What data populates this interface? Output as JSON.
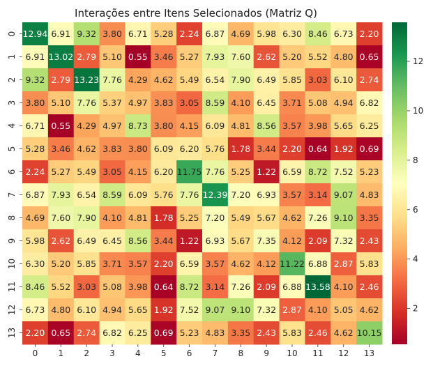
{
  "chart_data": {
    "type": "heatmap",
    "title": "Interações entre Itens Selecionados (Matriz Q)",
    "xlabel": "",
    "ylabel": "",
    "x_categories": [
      "0",
      "1",
      "2",
      "3",
      "4",
      "5",
      "6",
      "7",
      "8",
      "9",
      "10",
      "11",
      "12",
      "13"
    ],
    "y_categories": [
      "0",
      "1",
      "2",
      "3",
      "4",
      "5",
      "6",
      "7",
      "8",
      "9",
      "10",
      "11",
      "12",
      "13"
    ],
    "values": [
      [
        12.94,
        6.91,
        9.32,
        3.8,
        6.71,
        5.28,
        2.24,
        6.87,
        4.69,
        5.98,
        6.3,
        8.46,
        6.73,
        2.2
      ],
      [
        6.91,
        13.02,
        2.79,
        5.1,
        0.55,
        3.46,
        5.27,
        7.93,
        7.6,
        2.62,
        5.2,
        5.52,
        4.8,
        0.65
      ],
      [
        9.32,
        2.79,
        13.23,
        7.76,
        4.29,
        4.62,
        5.49,
        6.54,
        7.9,
        6.49,
        5.85,
        3.03,
        6.1,
        2.74
      ],
      [
        3.8,
        5.1,
        7.76,
        5.37,
        4.97,
        3.83,
        3.05,
        8.59,
        4.1,
        6.45,
        3.71,
        5.08,
        4.94,
        6.82
      ],
      [
        6.71,
        0.55,
        4.29,
        4.97,
        8.73,
        3.8,
        4.15,
        6.09,
        4.81,
        8.56,
        3.57,
        3.98,
        5.65,
        6.25
      ],
      [
        5.28,
        3.46,
        4.62,
        3.83,
        3.8,
        6.09,
        6.2,
        5.76,
        1.78,
        3.44,
        2.2,
        0.64,
        1.92,
        0.69
      ],
      [
        2.24,
        5.27,
        5.49,
        3.05,
        4.15,
        6.2,
        11.75,
        7.76,
        5.25,
        1.22,
        6.59,
        8.72,
        7.52,
        5.23
      ],
      [
        6.87,
        7.93,
        6.54,
        8.59,
        6.09,
        5.76,
        7.76,
        12.39,
        7.2,
        6.93,
        3.57,
        3.14,
        9.07,
        4.83
      ],
      [
        4.69,
        7.6,
        7.9,
        4.1,
        4.81,
        1.78,
        5.25,
        7.2,
        5.49,
        5.67,
        4.62,
        7.26,
        9.1,
        3.35
      ],
      [
        5.98,
        2.62,
        6.49,
        6.45,
        8.56,
        3.44,
        1.22,
        6.93,
        5.67,
        7.35,
        4.12,
        2.09,
        7.32,
        2.43
      ],
      [
        6.3,
        5.2,
        5.85,
        3.71,
        3.57,
        2.2,
        6.59,
        3.57,
        4.62,
        4.12,
        11.22,
        6.88,
        2.87,
        5.83
      ],
      [
        8.46,
        5.52,
        3.03,
        5.08,
        3.98,
        0.64,
        8.72,
        3.14,
        7.26,
        2.09,
        6.88,
        13.58,
        4.1,
        2.46
      ],
      [
        6.73,
        4.8,
        6.1,
        4.94,
        5.65,
        1.92,
        7.52,
        9.07,
        9.1,
        7.32,
        2.87,
        4.1,
        5.05,
        4.62
      ],
      [
        2.2,
        0.65,
        2.74,
        6.82,
        6.25,
        0.69,
        5.23,
        4.83,
        3.35,
        2.43,
        5.83,
        2.46,
        4.62,
        10.15
      ]
    ],
    "value_range": [
      0.55,
      13.58
    ],
    "colormap": "RdYlGn",
    "colorbar_ticks": [
      2,
      4,
      6,
      8,
      10,
      12
    ],
    "colorbar_tick_labels": [
      "2",
      "4",
      "6",
      "8",
      "10",
      "12"
    ],
    "legend_placement": "right",
    "grid": false
  }
}
